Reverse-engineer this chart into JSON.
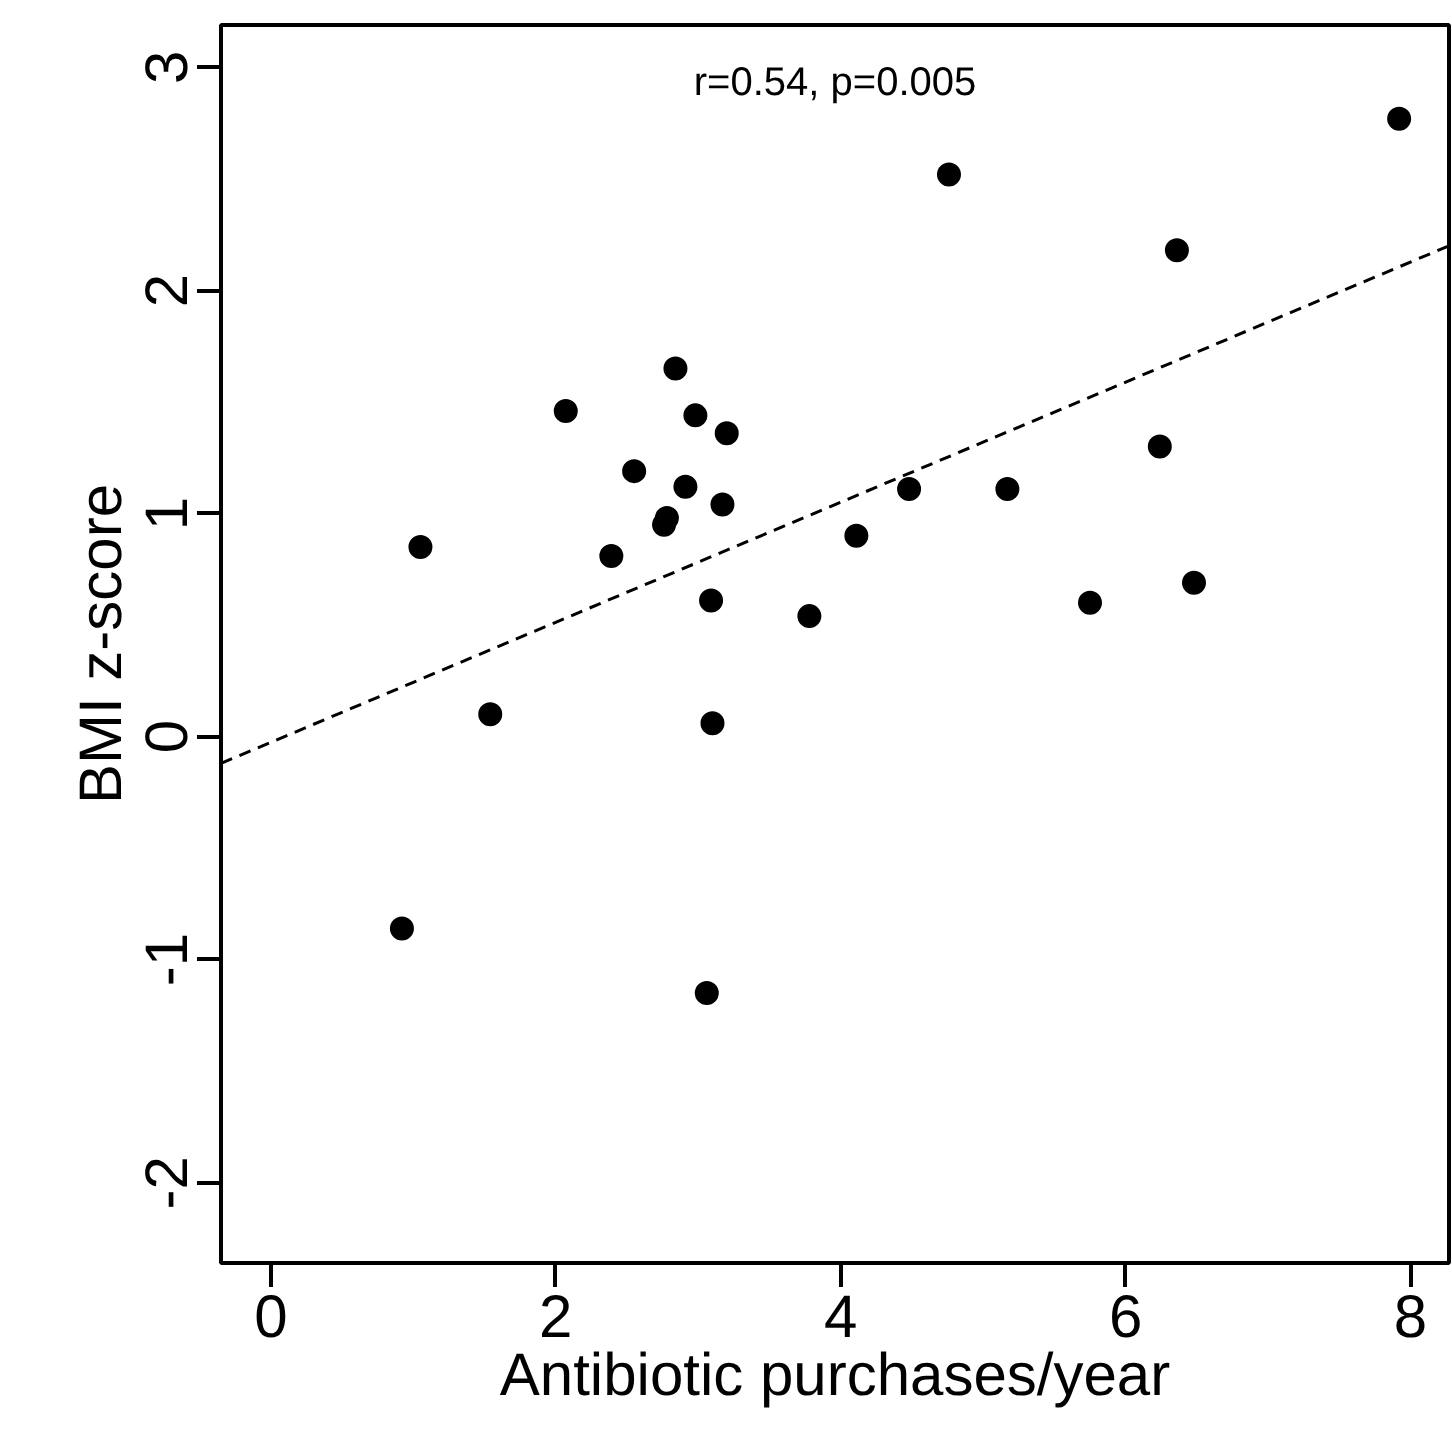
{
  "chart_data": {
    "type": "scatter",
    "xlabel": "Antibiotic purchases/year",
    "ylabel": "BMI z-score",
    "annotations": [
      "r=0.54, p=0.005"
    ],
    "xlim": [
      -0.35,
      8.27
    ],
    "ylim": [
      -2.36,
      3.19
    ],
    "xticks": [
      0,
      2,
      4,
      6,
      8
    ],
    "yticks": [
      -2,
      -1,
      0,
      1,
      2,
      3
    ],
    "grid": false,
    "series": [
      {
        "marker": "circle",
        "color": "#000000",
        "x": [
          0.92,
          1.05,
          1.54,
          2.07,
          2.39,
          2.55,
          2.76,
          2.78,
          2.84,
          2.91,
          2.98,
          3.09,
          3.1,
          3.06,
          3.2,
          3.17,
          3.78,
          4.11,
          4.48,
          4.76,
          5.17,
          5.75,
          6.24,
          6.36,
          6.48,
          7.92
        ],
        "values": [
          -0.86,
          0.85,
          0.1,
          1.46,
          0.81,
          1.19,
          0.95,
          0.98,
          1.65,
          1.12,
          1.44,
          0.61,
          0.06,
          -1.15,
          1.36,
          1.04,
          0.54,
          0.9,
          1.11,
          2.52,
          1.11,
          0.6,
          1.3,
          2.18,
          0.69,
          2.77
        ]
      },
      {
        "type": "line",
        "color": "#000000",
        "line_style": "dashed",
        "x": [
          -0.35,
          8.27
        ],
        "values": [
          -0.12,
          2.2
        ]
      }
    ]
  }
}
